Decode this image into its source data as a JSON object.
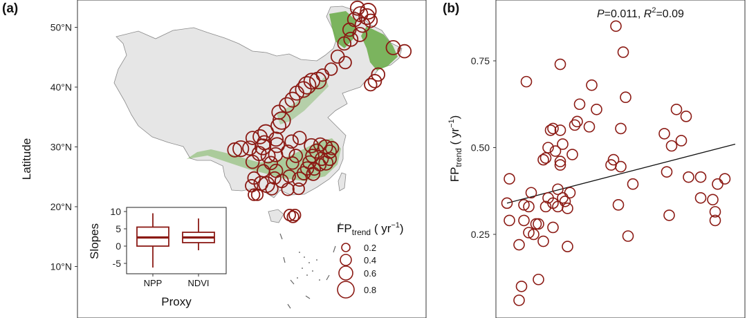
{
  "colors": {
    "marker": "#8b1a14",
    "forest": "#6fae4f",
    "land": "#e6e6e6",
    "border": "#888888",
    "line": "#111111"
  },
  "panel_a": {
    "label": "(a)",
    "ylabel": "Latitude",
    "lat_ticks": [
      "50°N",
      "40°N",
      "30°N",
      "20°N",
      "10°N"
    ],
    "legend": {
      "title_main": "FP",
      "title_sub": "trend",
      "title_unit": " ( yr",
      "title_exp": "−1",
      "title_close": ")",
      "items": [
        "0.2",
        "0.4",
        "0.6",
        "0.8"
      ]
    },
    "inset": {
      "ylabel": "Slopes",
      "xlabel": "Proxy",
      "yticks": [
        "10",
        "5",
        "0",
        "-5"
      ]
    }
  },
  "panel_b": {
    "label": "(b)",
    "stats_p_label": "P",
    "stats_p_value": "=0.011, ",
    "stats_r_label": "R",
    "stats_r_exp": "2",
    "stats_r_value": "=0.09",
    "ylabel_main": "FP",
    "ylabel_sub": "trend",
    "ylabel_unit": " ( yr",
    "ylabel_exp": "−1",
    "ylabel_close": ")",
    "yticks": [
      "0.75",
      "0.50",
      "0.25"
    ]
  },
  "chart_data": [
    {
      "type": "scatter",
      "panel": "a",
      "ylabel": "Latitude",
      "ylim": [
        5,
        55
      ],
      "xlim": [
        72,
        136
      ],
      "y_ticks": [
        50,
        40,
        30,
        20,
        10
      ],
      "size_legend": [
        0.2,
        0.4,
        0.6,
        0.8
      ],
      "points": [
        {
          "lon": 124.0,
          "lat": 53.2,
          "fp": 0.5
        },
        {
          "lon": 126.3,
          "lat": 52.7,
          "fp": 0.6
        },
        {
          "lon": 124.6,
          "lat": 52.2,
          "fp": 0.55
        },
        {
          "lon": 126.0,
          "lat": 51.8,
          "fp": 0.6
        },
        {
          "lon": 123.4,
          "lat": 51.3,
          "fp": 0.5
        },
        {
          "lon": 125.1,
          "lat": 50.4,
          "fp": 0.55
        },
        {
          "lon": 126.8,
          "lat": 51.1,
          "fp": 0.45
        },
        {
          "lon": 122.3,
          "lat": 49.6,
          "fp": 0.45
        },
        {
          "lon": 124.5,
          "lat": 48.8,
          "fp": 0.5
        },
        {
          "lon": 122.6,
          "lat": 48.0,
          "fp": 0.5
        },
        {
          "lon": 121.2,
          "lat": 47.3,
          "fp": 0.45
        },
        {
          "lon": 131.6,
          "lat": 46.6,
          "fp": 0.5
        },
        {
          "lon": 134.0,
          "lat": 46.0,
          "fp": 0.45
        },
        {
          "lon": 119.8,
          "lat": 45.1,
          "fp": 0.45
        },
        {
          "lon": 121.4,
          "lat": 44.1,
          "fp": 0.4
        },
        {
          "lon": 118.4,
          "lat": 43.0,
          "fp": 0.4
        },
        {
          "lon": 116.6,
          "lat": 42.0,
          "fp": 0.4
        },
        {
          "lon": 128.4,
          "lat": 42.1,
          "fp": 0.45
        },
        {
          "lon": 127.7,
          "lat": 41.0,
          "fp": 0.45
        },
        {
          "lon": 126.8,
          "lat": 40.4,
          "fp": 0.4
        },
        {
          "lon": 114.3,
          "lat": 41.0,
          "fp": 0.6
        },
        {
          "lon": 115.6,
          "lat": 41.1,
          "fp": 0.65
        },
        {
          "lon": 113.3,
          "lat": 40.3,
          "fp": 0.7
        },
        {
          "lon": 112.5,
          "lat": 39.6,
          "fp": 0.6
        },
        {
          "lon": 111.1,
          "lat": 39.0,
          "fp": 0.5
        },
        {
          "lon": 110.2,
          "lat": 37.9,
          "fp": 0.55
        },
        {
          "lon": 109.0,
          "lat": 37.0,
          "fp": 0.55
        },
        {
          "lon": 107.3,
          "lat": 35.8,
          "fp": 0.5
        },
        {
          "lon": 107.9,
          "lat": 34.4,
          "fp": 0.7
        },
        {
          "lon": 107.2,
          "lat": 33.5,
          "fp": 0.55
        },
        {
          "lon": 104.5,
          "lat": 32.4,
          "fp": 0.6
        },
        {
          "lon": 101.7,
          "lat": 31.5,
          "fp": 0.45
        },
        {
          "lon": 103.3,
          "lat": 31.7,
          "fp": 0.5
        },
        {
          "lon": 106.7,
          "lat": 31.3,
          "fp": 0.5
        },
        {
          "lon": 104.2,
          "lat": 30.7,
          "fp": 0.5
        },
        {
          "lon": 103.9,
          "lat": 30.0,
          "fp": 0.6
        },
        {
          "lon": 97.9,
          "lat": 29.5,
          "fp": 0.5
        },
        {
          "lon": 99.2,
          "lat": 29.7,
          "fp": 0.6
        },
        {
          "lon": 101.1,
          "lat": 29.8,
          "fp": 0.5
        },
        {
          "lon": 106.9,
          "lat": 30.3,
          "fp": 0.55
        },
        {
          "lon": 103.1,
          "lat": 28.9,
          "fp": 0.5
        },
        {
          "lon": 105.0,
          "lat": 28.5,
          "fp": 0.5
        },
        {
          "lon": 106.6,
          "lat": 28.7,
          "fp": 0.5
        },
        {
          "lon": 101.7,
          "lat": 27.5,
          "fp": 0.45
        },
        {
          "lon": 105.6,
          "lat": 27.3,
          "fp": 0.45
        },
        {
          "lon": 106.7,
          "lat": 26.0,
          "fp": 0.45
        },
        {
          "lon": 104.0,
          "lat": 26.0,
          "fp": 0.4
        },
        {
          "lon": 102.0,
          "lat": 24.8,
          "fp": 0.4
        },
        {
          "lon": 101.5,
          "lat": 23.5,
          "fp": 0.4
        },
        {
          "lon": 103.5,
          "lat": 23.9,
          "fp": 0.5
        },
        {
          "lon": 104.7,
          "lat": 23.7,
          "fp": 0.6
        },
        {
          "lon": 106.4,
          "lat": 24.8,
          "fp": 0.4
        },
        {
          "lon": 107.9,
          "lat": 24.3,
          "fp": 0.45
        },
        {
          "lon": 105.8,
          "lat": 23.0,
          "fp": 0.4
        },
        {
          "lon": 102.0,
          "lat": 22.0,
          "fp": 0.35
        },
        {
          "lon": 102.7,
          "lat": 22.0,
          "fp": 0.35
        },
        {
          "lon": 109.5,
          "lat": 25.1,
          "fp": 0.4
        },
        {
          "lon": 111.7,
          "lat": 24.6,
          "fp": 0.5
        },
        {
          "lon": 112.6,
          "lat": 25.6,
          "fp": 0.45
        },
        {
          "lon": 113.3,
          "lat": 26.4,
          "fp": 0.45
        },
        {
          "lon": 114.6,
          "lat": 25.5,
          "fp": 0.45
        },
        {
          "lon": 113.8,
          "lat": 27.4,
          "fp": 0.45
        },
        {
          "lon": 114.4,
          "lat": 28.5,
          "fp": 0.45
        },
        {
          "lon": 115.3,
          "lat": 29.3,
          "fp": 0.5
        },
        {
          "lon": 114.2,
          "lat": 30.2,
          "fp": 0.5
        },
        {
          "lon": 116.1,
          "lat": 30.4,
          "fp": 0.45
        },
        {
          "lon": 117.2,
          "lat": 30.0,
          "fp": 0.5
        },
        {
          "lon": 118.1,
          "lat": 29.2,
          "fp": 0.45
        },
        {
          "lon": 116.4,
          "lat": 28.0,
          "fp": 0.45
        },
        {
          "lon": 117.3,
          "lat": 27.3,
          "fp": 0.5
        },
        {
          "lon": 118.1,
          "lat": 28.0,
          "fp": 0.45
        },
        {
          "lon": 116.0,
          "lat": 27.0,
          "fp": 0.4
        },
        {
          "lon": 109.2,
          "lat": 29.2,
          "fp": 0.45
        },
        {
          "lon": 110.2,
          "lat": 27.3,
          "fp": 0.4
        },
        {
          "lon": 110.9,
          "lat": 28.5,
          "fp": 0.45
        },
        {
          "lon": 110.0,
          "lat": 30.9,
          "fp": 0.45
        },
        {
          "lon": 111.7,
          "lat": 31.5,
          "fp": 0.45
        },
        {
          "lon": 118.6,
          "lat": 29.8,
          "fp": 0.45
        },
        {
          "lon": 114.8,
          "lat": 26.3,
          "fp": 0.4
        },
        {
          "lon": 109.2,
          "lat": 22.9,
          "fp": 0.4
        },
        {
          "lon": 111.5,
          "lat": 23.0,
          "fp": 0.35
        },
        {
          "lon": 109.6,
          "lat": 18.6,
          "fp": 0.35
        },
        {
          "lon": 110.3,
          "lat": 18.3,
          "fp": 0.35
        },
        {
          "lon": 110.7,
          "lat": 18.6,
          "fp": 0.35
        }
      ]
    },
    {
      "type": "box",
      "panel": "a-inset",
      "ylabel": "Slopes",
      "xlabel": "Proxy",
      "categories": [
        "NPP",
        "NDVI"
      ],
      "ylim": [
        -6,
        10
      ],
      "boxes": [
        {
          "name": "NPP",
          "min": -6.2,
          "q1": 0.0,
          "median": 2.5,
          "q3": 5.5,
          "max": 9.5
        },
        {
          "name": "NDVI",
          "min": -1.2,
          "q1": 1.0,
          "median": 2.5,
          "q3": 4.0,
          "max": 8.0
        }
      ]
    },
    {
      "type": "scatter",
      "panel": "b",
      "ylabel": "FPtrend ( yr−1 )",
      "ylim": [
        0.0,
        0.9
      ],
      "y_ticks": [
        0.25,
        0.5,
        0.75
      ],
      "xlim": [
        0,
        1
      ],
      "trend_line": {
        "x": [
          0.0,
          1.0
        ],
        "y": [
          0.34,
          0.51
        ]
      },
      "annotation": "P=0.011, R2=0.09",
      "points": [
        {
          "x": 0.0,
          "y": 0.34
        },
        {
          "x": 0.01,
          "y": 0.41
        },
        {
          "x": 0.01,
          "y": 0.29
        },
        {
          "x": 0.05,
          "y": 0.22
        },
        {
          "x": 0.05,
          "y": 0.06
        },
        {
          "x": 0.06,
          "y": 0.1
        },
        {
          "x": 0.07,
          "y": 0.29
        },
        {
          "x": 0.07,
          "y": 0.335
        },
        {
          "x": 0.08,
          "y": 0.69
        },
        {
          "x": 0.09,
          "y": 0.255
        },
        {
          "x": 0.09,
          "y": 0.33
        },
        {
          "x": 0.1,
          "y": 0.37
        },
        {
          "x": 0.11,
          "y": 0.25
        },
        {
          "x": 0.12,
          "y": 0.28
        },
        {
          "x": 0.13,
          "y": 0.28
        },
        {
          "x": 0.13,
          "y": 0.12
        },
        {
          "x": 0.15,
          "y": 0.23
        },
        {
          "x": 0.15,
          "y": 0.465
        },
        {
          "x": 0.16,
          "y": 0.47
        },
        {
          "x": 0.16,
          "y": 0.33
        },
        {
          "x": 0.17,
          "y": 0.355
        },
        {
          "x": 0.17,
          "y": 0.5
        },
        {
          "x": 0.18,
          "y": 0.55
        },
        {
          "x": 0.19,
          "y": 0.555
        },
        {
          "x": 0.19,
          "y": 0.34
        },
        {
          "x": 0.19,
          "y": 0.27
        },
        {
          "x": 0.2,
          "y": 0.49
        },
        {
          "x": 0.21,
          "y": 0.33
        },
        {
          "x": 0.21,
          "y": 0.38
        },
        {
          "x": 0.22,
          "y": 0.45
        },
        {
          "x": 0.22,
          "y": 0.46
        },
        {
          "x": 0.22,
          "y": 0.55
        },
        {
          "x": 0.22,
          "y": 0.74
        },
        {
          "x": 0.23,
          "y": 0.51
        },
        {
          "x": 0.23,
          "y": 0.355
        },
        {
          "x": 0.24,
          "y": 0.345
        },
        {
          "x": 0.25,
          "y": 0.325
        },
        {
          "x": 0.25,
          "y": 0.215
        },
        {
          "x": 0.26,
          "y": 0.37
        },
        {
          "x": 0.27,
          "y": 0.48
        },
        {
          "x": 0.28,
          "y": 0.565
        },
        {
          "x": 0.29,
          "y": 0.575
        },
        {
          "x": 0.3,
          "y": 0.625
        },
        {
          "x": 0.34,
          "y": 0.56
        },
        {
          "x": 0.35,
          "y": 0.68
        },
        {
          "x": 0.37,
          "y": 0.61
        },
        {
          "x": 0.43,
          "y": 0.45
        },
        {
          "x": 0.44,
          "y": 0.465
        },
        {
          "x": 0.45,
          "y": 0.85
        },
        {
          "x": 0.46,
          "y": 0.335
        },
        {
          "x": 0.47,
          "y": 0.555
        },
        {
          "x": 0.47,
          "y": 0.445
        },
        {
          "x": 0.48,
          "y": 0.775
        },
        {
          "x": 0.49,
          "y": 0.645
        },
        {
          "x": 0.5,
          "y": 0.245
        },
        {
          "x": 0.52,
          "y": 0.395
        },
        {
          "x": 0.65,
          "y": 0.54
        },
        {
          "x": 0.66,
          "y": 0.43
        },
        {
          "x": 0.67,
          "y": 0.305
        },
        {
          "x": 0.68,
          "y": 0.505
        },
        {
          "x": 0.7,
          "y": 0.61
        },
        {
          "x": 0.72,
          "y": 0.52
        },
        {
          "x": 0.74,
          "y": 0.59
        },
        {
          "x": 0.75,
          "y": 0.415
        },
        {
          "x": 0.8,
          "y": 0.415
        },
        {
          "x": 0.8,
          "y": 0.355
        },
        {
          "x": 0.85,
          "y": 0.35
        },
        {
          "x": 0.86,
          "y": 0.29
        },
        {
          "x": 0.86,
          "y": 0.315
        },
        {
          "x": 0.87,
          "y": 0.395
        },
        {
          "x": 0.9,
          "y": 0.41
        }
      ]
    }
  ]
}
